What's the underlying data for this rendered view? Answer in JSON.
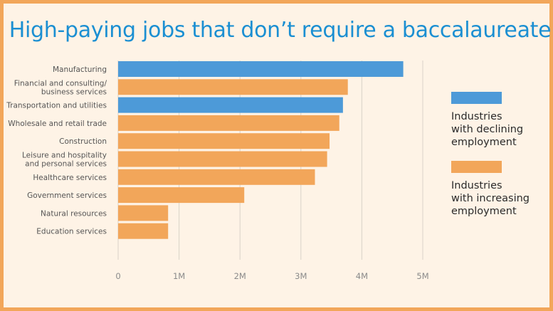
{
  "chart_data": {
    "type": "bar",
    "orientation": "horizontal",
    "title": "High-paying jobs that don’t require a baccalaureate",
    "categories": [
      "Manufacturing",
      "Financial and consulting/\nbusiness services",
      "Transportation and utilities",
      "Wholesale and retail trade",
      "Construction",
      "Leisure and hospitality\nand personal services",
      "Healthcare services",
      "Government services",
      "Natural resources",
      "Education services"
    ],
    "values": [
      4680000,
      3770000,
      3690000,
      3630000,
      3470000,
      3430000,
      3230000,
      2070000,
      820000,
      820000
    ],
    "groups": [
      "declining",
      "increasing",
      "declining",
      "increasing",
      "increasing",
      "increasing",
      "increasing",
      "increasing",
      "increasing",
      "increasing"
    ],
    "xlim": [
      0,
      5000000
    ],
    "xticks": [
      0,
      1000000,
      2000000,
      3000000,
      4000000,
      5000000
    ],
    "xtick_labels": [
      "0",
      "1M",
      "2M",
      "3M",
      "4M",
      "5M"
    ],
    "grid": true,
    "legend": {
      "placement": "right",
      "entries": [
        {
          "key": "declining",
          "label": "Industries\nwith declining\nemployment",
          "color": "#4d9ad8"
        },
        {
          "key": "increasing",
          "label": "Industries\nwith increasing\nemployment",
          "color": "#f2a65a"
        }
      ]
    }
  }
}
